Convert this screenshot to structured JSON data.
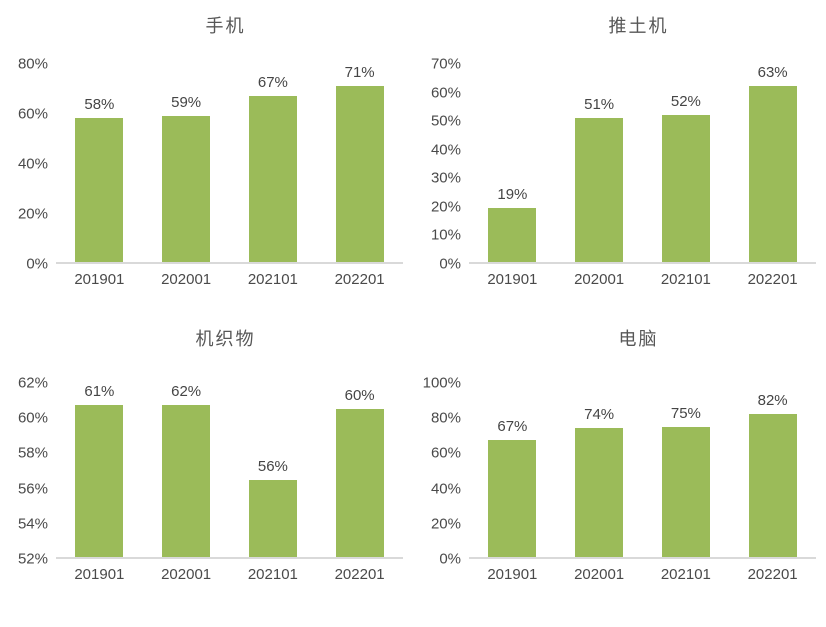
{
  "colors": {
    "bar": "#9BBB59",
    "axis_line": "#d9d9d9",
    "text": "#4a4a4a",
    "title": "#575757",
    "background": "#ffffff"
  },
  "chart_data": [
    {
      "type": "bar",
      "title": "手机",
      "categories": [
        "201901",
        "202001",
        "202101",
        "202201"
      ],
      "values": [
        58,
        59,
        67,
        71
      ],
      "labels": [
        "58%",
        "59%",
        "67%",
        "71%"
      ],
      "ylim": [
        0,
        80
      ],
      "yticks": [
        0,
        20,
        40,
        60,
        80
      ],
      "ytick_suffix": "%",
      "grid": false,
      "legend": "none"
    },
    {
      "type": "bar",
      "title": "推土机",
      "categories": [
        "201901",
        "202001",
        "202101",
        "202201"
      ],
      "values": [
        19,
        51,
        52,
        63
      ],
      "labels": [
        "19%",
        "51%",
        "52%",
        "63%"
      ],
      "ylim": [
        0,
        70
      ],
      "yticks": [
        0,
        10,
        20,
        30,
        40,
        50,
        60,
        70
      ],
      "ytick_suffix": "%",
      "grid": false,
      "legend": "none"
    },
    {
      "type": "bar",
      "title": "机织物",
      "categories": [
        "201901",
        "202001",
        "202101",
        "202201"
      ],
      "values": [
        61,
        62,
        56,
        60
      ],
      "bar_values": [
        61.4,
        61.9,
        56.4,
        60.5
      ],
      "labels": [
        "61%",
        "62%",
        "56%",
        "60%"
      ],
      "ylim": [
        52,
        62
      ],
      "yticks": [
        52,
        54,
        56,
        58,
        60,
        62
      ],
      "ytick_suffix": "%",
      "grid": false,
      "legend": "none"
    },
    {
      "type": "bar",
      "title": "电脑",
      "categories": [
        "201901",
        "202001",
        "202101",
        "202201"
      ],
      "values": [
        67,
        74,
        75,
        82
      ],
      "labels": [
        "67%",
        "74%",
        "75%",
        "82%"
      ],
      "ylim": [
        0,
        100
      ],
      "yticks": [
        0,
        20,
        40,
        60,
        80,
        100
      ],
      "ytick_suffix": "%",
      "grid": false,
      "legend": "none"
    }
  ]
}
